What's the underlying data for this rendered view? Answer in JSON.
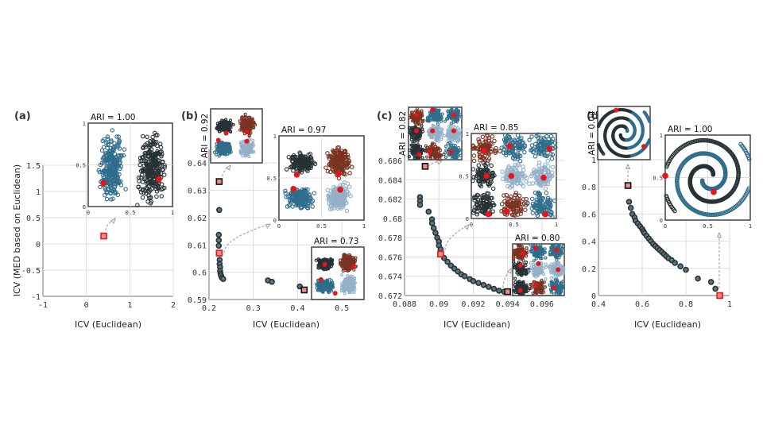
{
  "colors": {
    "dark": "#263236",
    "teal": "#2f6d8c",
    "light": "#92b1c8",
    "brown": "#7a3322",
    "center": "#e8141b",
    "pareto_fill": "#5f7680",
    "highlight": "#f08a8a"
  },
  "y_label": "ICV (MED based on Euclidean)",
  "chart_data": [
    {
      "type": "scatter",
      "panel": "(a)",
      "xlabel": "ICV (Euclidean)",
      "ylabel": "ICV (MED based on Euclidean)",
      "xlim": [
        -1,
        2
      ],
      "ylim": [
        -1,
        1.5
      ],
      "grid": true,
      "xticks": [
        "-1",
        "0",
        "1",
        "2"
      ],
      "yticks": [
        "-1",
        "-0.5",
        "0",
        "0.5",
        "1",
        "1.5"
      ],
      "points": [],
      "highlighted": [
        {
          "x": 0.4,
          "y": 0.15,
          "ari": "ARI = 1.00"
        }
      ],
      "insets": [
        {
          "label": "ARI = 1.00",
          "kind": "two-blobs",
          "centers": [
            [
              0.18,
              0.28
            ],
            [
              0.84,
              0.33
            ]
          ]
        }
      ]
    },
    {
      "type": "scatter",
      "panel": "(b)",
      "xlabel": "ICV (Euclidean)",
      "xlim": [
        0.2,
        0.55
      ],
      "ylim": [
        0.59,
        0.645
      ],
      "grid": true,
      "xticks": [
        "0.2",
        "0.3",
        "0.4",
        "0.5"
      ],
      "yticks": [
        "0.59",
        "0.6",
        "0.61",
        "0.62",
        "0.63",
        "0.64"
      ],
      "points": [
        [
          0.223,
          0.6228
        ],
        [
          0.222,
          0.6137
        ],
        [
          0.222,
          0.6117
        ],
        [
          0.222,
          0.6097
        ],
        [
          0.224,
          0.6045
        ],
        [
          0.224,
          0.603
        ],
        [
          0.225,
          0.6018
        ],
        [
          0.225,
          0.6005
        ],
        [
          0.226,
          0.5995
        ],
        [
          0.227,
          0.5988
        ],
        [
          0.229,
          0.598
        ],
        [
          0.232,
          0.5975
        ],
        [
          0.333,
          0.597
        ],
        [
          0.342,
          0.5965
        ],
        [
          0.405,
          0.5948
        ]
      ],
      "highlighted": [
        {
          "x": 0.223,
          "y": 0.6332,
          "ari": "ARI = 0.92"
        },
        {
          "x": 0.223,
          "y": 0.607,
          "ari": "ARI = 0.97"
        },
        {
          "x": 0.415,
          "y": 0.5935,
          "ari": "ARI = 0.73"
        }
      ],
      "insets": [
        {
          "label": "ARI = 0.92",
          "kind": "four-blobs",
          "centers": [
            [
              0.3,
              0.55
            ],
            [
              0.7,
              0.57
            ],
            [
              0.15,
              0.42
            ],
            [
              0.7,
              0.4
            ]
          ]
        },
        {
          "label": "ARI = 0.97",
          "kind": "four-blobs",
          "centers": [
            [
              0.21,
              0.54
            ],
            [
              0.7,
              0.55
            ],
            [
              0.17,
              0.37
            ],
            [
              0.72,
              0.36
            ]
          ]
        },
        {
          "label": "ARI = 0.73",
          "kind": "four-blobs",
          "centers": [
            [
              0.25,
              0.67
            ],
            [
              0.8,
              0.63
            ],
            [
              0.18,
              0.38
            ],
            [
              0.45,
              0.12
            ]
          ]
        }
      ]
    },
    {
      "type": "scatter",
      "panel": "(c)",
      "xlabel": "ICV (Euclidean)",
      "xlim": [
        0.088,
        0.0973
      ],
      "ylim": [
        0.672,
        0.6865
      ],
      "grid": true,
      "xticks": [
        "0.088",
        "0.09",
        "0.092",
        "0.094",
        "0.096"
      ],
      "yticks": [
        "0.672",
        "0.674",
        "0.676",
        "0.678",
        "0.68",
        "0.682",
        "0.684",
        "0.686"
      ],
      "points": [
        [
          0.0889,
          0.6822
        ],
        [
          0.0889,
          0.6818
        ],
        [
          0.0889,
          0.6814
        ],
        [
          0.0894,
          0.6807
        ],
        [
          0.0896,
          0.6799
        ],
        [
          0.0896,
          0.6795
        ],
        [
          0.0897,
          0.679
        ],
        [
          0.0898,
          0.6785
        ],
        [
          0.0899,
          0.678
        ],
        [
          0.09,
          0.6776
        ],
        [
          0.09,
          0.6772
        ],
        [
          0.0901,
          0.6768
        ],
        [
          0.0903,
          0.6759
        ],
        [
          0.0905,
          0.6755
        ],
        [
          0.0907,
          0.6751
        ],
        [
          0.0909,
          0.6748
        ],
        [
          0.0911,
          0.6745
        ],
        [
          0.0913,
          0.6742
        ],
        [
          0.0915,
          0.674
        ],
        [
          0.0918,
          0.6737
        ],
        [
          0.092,
          0.6735
        ],
        [
          0.0923,
          0.6733
        ],
        [
          0.0926,
          0.6731
        ],
        [
          0.0929,
          0.6729
        ],
        [
          0.0932,
          0.6727
        ],
        [
          0.0935,
          0.6725
        ],
        [
          0.0938,
          0.6724
        ]
      ],
      "highlighted": [
        {
          "x": 0.0892,
          "y": 0.6854,
          "ari": "ARI = 0.82"
        },
        {
          "x": 0.0901,
          "y": 0.6763,
          "ari": "ARI = 0.85"
        },
        {
          "x": 0.094,
          "y": 0.6724,
          "ari": "ARI = 0.80"
        }
      ],
      "insets": [
        {
          "label": "ARI = 0.82",
          "kind": "nine-blobs",
          "centers": [
            [
              0.15,
              0.85
            ],
            [
              0.45,
              0.95
            ],
            [
              0.85,
              0.85
            ],
            [
              0.15,
              0.55
            ],
            [
              0.45,
              0.55
            ],
            [
              0.85,
              0.55
            ],
            [
              0.2,
              0.1
            ],
            [
              0.4,
              0.15
            ],
            [
              0.8,
              0.15
            ]
          ]
        },
        {
          "label": "ARI = 0.85",
          "kind": "nine-blobs",
          "centers": [
            [
              0.15,
              0.8
            ],
            [
              0.45,
              0.85
            ],
            [
              0.92,
              0.82
            ],
            [
              0.18,
              0.5
            ],
            [
              0.47,
              0.5
            ],
            [
              0.85,
              0.48
            ],
            [
              0.2,
              0.05
            ],
            [
              0.42,
              0.08
            ],
            [
              0.87,
              0.05
            ]
          ]
        },
        {
          "label": "ARI = 0.80",
          "kind": "nine-blobs",
          "centers": [
            [
              0.2,
              0.82
            ],
            [
              0.45,
              0.92
            ],
            [
              0.85,
              0.88
            ],
            [
              0.15,
              0.58
            ],
            [
              0.5,
              0.62
            ],
            [
              0.88,
              0.5
            ],
            [
              0.15,
              0.1
            ],
            [
              0.45,
              0.2
            ],
            [
              0.8,
              0.15
            ]
          ]
        }
      ]
    },
    {
      "type": "scatter",
      "panel": "(d)",
      "xlabel": "ICV (Euclidean)",
      "xlim": [
        0.4,
        1
      ],
      "ylim": [
        0,
        1
      ],
      "grid": true,
      "xticks": [
        "0.4",
        "0.6",
        "0.8",
        "1"
      ],
      "yticks": [
        "0",
        "0.2",
        "0.4",
        "0.6",
        "0.8",
        "1"
      ],
      "points": [
        [
          0.54,
          0.69
        ],
        [
          0.548,
          0.645
        ],
        [
          0.555,
          0.6
        ],
        [
          0.565,
          0.575
        ],
        [
          0.57,
          0.55
        ],
        [
          0.58,
          0.53
        ],
        [
          0.59,
          0.51
        ],
        [
          0.6,
          0.49
        ],
        [
          0.605,
          0.475
        ],
        [
          0.61,
          0.46
        ],
        [
          0.62,
          0.44
        ],
        [
          0.63,
          0.42
        ],
        [
          0.64,
          0.4
        ],
        [
          0.65,
          0.38
        ],
        [
          0.66,
          0.365
        ],
        [
          0.67,
          0.35
        ],
        [
          0.68,
          0.335
        ],
        [
          0.69,
          0.32
        ],
        [
          0.7,
          0.305
        ],
        [
          0.71,
          0.29
        ],
        [
          0.72,
          0.275
        ],
        [
          0.735,
          0.26
        ],
        [
          0.75,
          0.24
        ],
        [
          0.775,
          0.215
        ],
        [
          0.8,
          0.19
        ],
        [
          0.855,
          0.125
        ],
        [
          0.915,
          0.1
        ],
        [
          0.935,
          0.05
        ]
      ],
      "highlighted": [
        {
          "x": 0.535,
          "y": 0.81,
          "ari": "ARI = 0.04"
        },
        {
          "x": 0.955,
          "y": 0.0,
          "ari": "ARI = 1.00"
        }
      ],
      "insets": [
        {
          "label": "ARI = 0.04",
          "kind": "spiral-wrong",
          "centers": [
            [
              0.35,
              0.93
            ],
            [
              0.88,
              0.25
            ]
          ]
        },
        {
          "label": "ARI = 1.00",
          "kind": "spiral",
          "centers": [
            [
              0.0,
              0.52
            ],
            [
              0.57,
              0.33
            ]
          ]
        }
      ]
    }
  ]
}
